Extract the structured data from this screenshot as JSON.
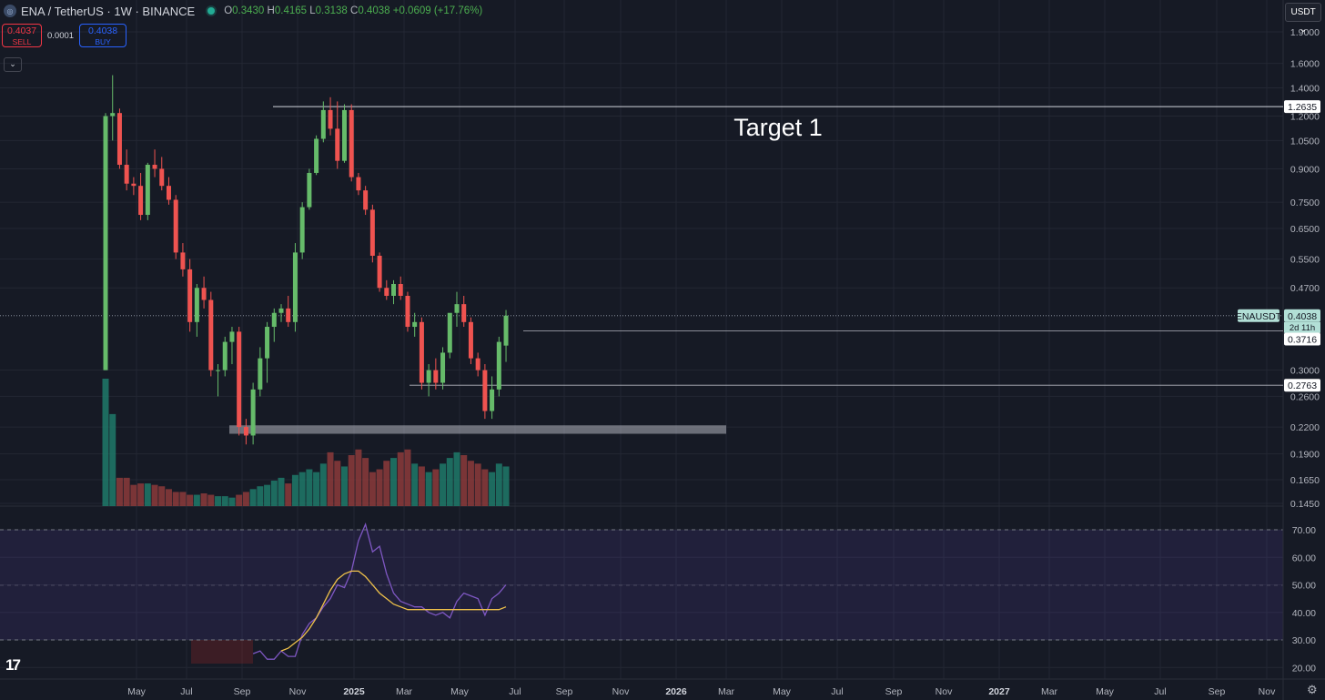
{
  "header": {
    "symbol_title": "ENA / TetherUS · 1W · BINANCE",
    "ohlc": {
      "o_label": "O",
      "o": "0.3430",
      "h_label": "H",
      "h": "0.4165",
      "l_label": "L",
      "l": "0.3138",
      "c_label": "C",
      "c": "0.4038",
      "change": "+0.0609 (+17.76%)"
    }
  },
  "trade_buttons": {
    "sell_price": "0.4037",
    "sell_label": "SELL",
    "spread": "0.0001",
    "buy_price": "0.4038",
    "buy_label": "BUY"
  },
  "currency_button": "USDT",
  "colors": {
    "up": "#66bb6a",
    "down": "#ef5350",
    "rsi": "#7e57c2",
    "rsi_ma": "#f0c24a",
    "background": "#161a25"
  },
  "icons": {
    "tv_logo": "tradingview-logo-icon",
    "settings": "gear-icon",
    "collapse": "chevron-down-icon",
    "symbol": "ena-logo-icon"
  },
  "chart_data": {
    "type": "candlestick",
    "price_axis": {
      "ticks": [
        "1.9000",
        "1.6000",
        "1.4000",
        "1.2000",
        "1.0500",
        "0.9000",
        "0.7500",
        "0.6500",
        "0.5500",
        "0.4700",
        "0.3000",
        "0.2600",
        "0.2200",
        "0.1900",
        "0.1650",
        "0.1450"
      ],
      "scale": "log"
    },
    "price_labels": [
      {
        "value": "1.2635",
        "kind": "level"
      },
      {
        "value": "0.4038",
        "kind": "last",
        "symbol": "ENAUSDT",
        "countdown": "2d 11h"
      },
      {
        "value": "0.3716",
        "kind": "level"
      },
      {
        "value": "0.2763",
        "kind": "level"
      }
    ],
    "annotations": [
      {
        "text": "Target 1",
        "price": 1.2635
      }
    ],
    "support_zone": [
      0.212,
      0.222
    ],
    "rsi_axis": {
      "ticks": [
        "70.00",
        "60.00",
        "50.00",
        "40.00",
        "30.00",
        "20.00"
      ],
      "band": [
        30,
        70
      ]
    },
    "time_axis": [
      "May",
      "Jul",
      "Sep",
      "Nov",
      "2025",
      "Mar",
      "May",
      "Jul",
      "Sep",
      "Nov",
      "2026",
      "Mar",
      "May",
      "Jul",
      "Sep",
      "Nov",
      "2027",
      "Mar",
      "May",
      "Jul",
      "Sep",
      "Nov"
    ],
    "candles": [
      [
        0.3,
        1.22,
        0.3,
        1.2
      ],
      [
        1.2,
        1.5,
        1.05,
        1.22
      ],
      [
        1.22,
        1.25,
        0.9,
        0.92
      ],
      [
        0.92,
        1.0,
        0.8,
        0.83
      ],
      [
        0.83,
        0.86,
        0.78,
        0.82
      ],
      [
        0.82,
        0.88,
        0.68,
        0.7
      ],
      [
        0.7,
        0.93,
        0.68,
        0.92
      ],
      [
        0.92,
        1.0,
        0.86,
        0.9
      ],
      [
        0.9,
        0.96,
        0.8,
        0.82
      ],
      [
        0.82,
        0.86,
        0.74,
        0.76
      ],
      [
        0.76,
        0.78,
        0.55,
        0.57
      ],
      [
        0.57,
        0.6,
        0.5,
        0.52
      ],
      [
        0.52,
        0.55,
        0.37,
        0.39
      ],
      [
        0.39,
        0.48,
        0.36,
        0.47
      ],
      [
        0.47,
        0.5,
        0.42,
        0.44
      ],
      [
        0.44,
        0.46,
        0.29,
        0.3
      ],
      [
        0.3,
        0.31,
        0.26,
        0.3
      ],
      [
        0.3,
        0.36,
        0.29,
        0.35
      ],
      [
        0.35,
        0.38,
        0.31,
        0.37
      ],
      [
        0.37,
        0.38,
        0.21,
        0.22
      ],
      [
        0.22,
        0.23,
        0.2,
        0.21
      ],
      [
        0.21,
        0.28,
        0.2,
        0.27
      ],
      [
        0.27,
        0.34,
        0.26,
        0.32
      ],
      [
        0.32,
        0.39,
        0.28,
        0.38
      ],
      [
        0.38,
        0.42,
        0.35,
        0.41
      ],
      [
        0.41,
        0.43,
        0.39,
        0.42
      ],
      [
        0.42,
        0.45,
        0.38,
        0.39
      ],
      [
        0.39,
        0.6,
        0.37,
        0.57
      ],
      [
        0.57,
        0.75,
        0.55,
        0.73
      ],
      [
        0.73,
        0.9,
        0.72,
        0.88
      ],
      [
        0.88,
        1.08,
        0.87,
        1.06
      ],
      [
        1.06,
        1.3,
        1.04,
        1.24
      ],
      [
        1.24,
        1.33,
        1.08,
        1.12
      ],
      [
        1.12,
        1.3,
        0.9,
        0.94
      ],
      [
        0.94,
        1.28,
        0.93,
        1.24
      ],
      [
        1.24,
        1.28,
        0.84,
        0.86
      ],
      [
        0.86,
        0.88,
        0.78,
        0.8
      ],
      [
        0.8,
        0.82,
        0.7,
        0.72
      ],
      [
        0.72,
        0.74,
        0.54,
        0.56
      ],
      [
        0.56,
        0.57,
        0.46,
        0.47
      ],
      [
        0.47,
        0.49,
        0.44,
        0.45
      ],
      [
        0.45,
        0.49,
        0.43,
        0.48
      ],
      [
        0.48,
        0.5,
        0.44,
        0.45
      ],
      [
        0.45,
        0.46,
        0.37,
        0.38
      ],
      [
        0.38,
        0.41,
        0.36,
        0.39
      ],
      [
        0.39,
        0.4,
        0.27,
        0.28
      ],
      [
        0.28,
        0.31,
        0.26,
        0.3
      ],
      [
        0.3,
        0.32,
        0.27,
        0.28
      ],
      [
        0.28,
        0.34,
        0.27,
        0.33
      ],
      [
        0.33,
        0.4,
        0.32,
        0.41
      ],
      [
        0.41,
        0.46,
        0.38,
        0.43
      ],
      [
        0.43,
        0.45,
        0.38,
        0.39
      ],
      [
        0.39,
        0.4,
        0.31,
        0.32
      ],
      [
        0.32,
        0.33,
        0.29,
        0.3
      ],
      [
        0.3,
        0.31,
        0.23,
        0.24
      ],
      [
        0.24,
        0.29,
        0.23,
        0.27
      ],
      [
        0.27,
        0.36,
        0.26,
        0.35
      ],
      [
        0.343,
        0.4165,
        0.3138,
        0.4038
      ]
    ],
    "volume": [
      90,
      65,
      20,
      20,
      15,
      16,
      16,
      15,
      14,
      12,
      10,
      10,
      8,
      8,
      9,
      8,
      7,
      7,
      6,
      8,
      10,
      12,
      14,
      15,
      18,
      20,
      16,
      22,
      24,
      26,
      24,
      30,
      38,
      32,
      28,
      36,
      40,
      34,
      24,
      26,
      32,
      34,
      38,
      40,
      30,
      28,
      24,
      26,
      30,
      34,
      38,
      36,
      32,
      30,
      26,
      24,
      30,
      28
    ],
    "rsi": [
      null,
      null,
      null,
      null,
      null,
      null,
      null,
      null,
      null,
      null,
      null,
      null,
      null,
      null,
      null,
      null,
      null,
      null,
      null,
      null,
      null,
      25,
      26,
      23,
      23,
      26,
      24,
      24,
      32,
      36,
      38,
      42,
      45,
      50,
      49,
      55,
      66,
      72,
      62,
      64,
      54,
      47,
      44,
      43,
      42,
      42,
      40,
      39,
      40,
      38,
      44,
      47,
      46,
      45,
      39,
      45,
      47,
      50
    ],
    "rsi_ma": [
      null,
      null,
      null,
      null,
      null,
      null,
      null,
      null,
      null,
      null,
      null,
      null,
      null,
      null,
      null,
      null,
      null,
      null,
      null,
      null,
      null,
      null,
      null,
      null,
      null,
      26,
      27,
      29,
      31,
      34,
      38,
      43,
      48,
      52,
      54,
      55,
      55,
      53,
      50,
      47,
      45,
      43,
      42,
      41,
      41,
      41,
      41,
      41,
      41,
      41,
      41,
      41,
      41,
      41,
      41,
      41,
      41,
      42
    ]
  }
}
